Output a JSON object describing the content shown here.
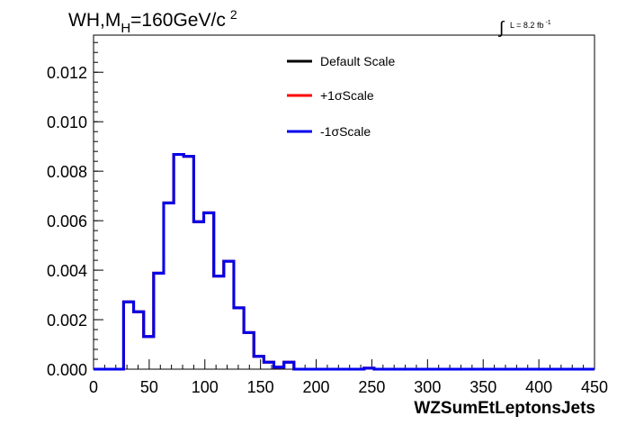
{
  "chart_data": {
    "type": "step",
    "title_parts": {
      "a": "WH,M",
      "sub": "H",
      "b": "=160GeV/c",
      "sup": "2"
    },
    "lumi": {
      "integral": "∫",
      "text": "L = 8.2 fb",
      "sup": "-1"
    },
    "xlabel": "WZSumEtLeptonsJets",
    "ylabel": "",
    "xlim": [
      0,
      450
    ],
    "ylim": [
      0,
      0.0135
    ],
    "xticks": [
      "0",
      "50",
      "100",
      "150",
      "200",
      "250",
      "300",
      "350",
      "400",
      "450"
    ],
    "yticks": [
      "0.000",
      "0.002",
      "0.004",
      "0.006",
      "0.008",
      "0.010",
      "0.012"
    ],
    "bin_width": 9,
    "bin_edges": [
      0,
      9,
      18,
      27,
      36,
      45,
      54,
      63,
      72,
      81,
      90,
      99,
      108,
      117,
      126,
      135,
      144,
      153,
      162,
      171,
      180,
      189,
      198,
      207,
      216,
      225,
      234,
      243,
      252,
      261,
      270,
      279,
      288,
      297,
      306,
      315,
      324,
      333,
      342,
      351,
      360,
      369,
      378,
      387,
      396,
      405,
      414,
      423,
      432,
      441,
      450
    ],
    "series": [
      {
        "name": "Default Scale",
        "color": "#000000",
        "values": [
          0,
          0,
          0,
          0.00272,
          0.00232,
          0.00132,
          0.00388,
          0.00672,
          0.00868,
          0.0086,
          0.00596,
          0.00632,
          0.00376,
          0.00436,
          0.00248,
          0.00148,
          0.00052,
          0.00028,
          8e-05,
          0.00028,
          0,
          0,
          0,
          0,
          0,
          0,
          0,
          4e-05,
          0,
          0,
          0,
          0,
          0,
          0,
          0,
          0,
          0,
          0,
          0,
          0,
          0,
          0,
          0,
          0,
          0,
          0,
          0,
          0,
          0,
          0
        ]
      },
      {
        "name": "+1σScale",
        "color": "#ff0000",
        "values": [
          0,
          0,
          0,
          0.00272,
          0.00232,
          0.00132,
          0.00388,
          0.00672,
          0.00868,
          0.0086,
          0.00596,
          0.00632,
          0.00376,
          0.00436,
          0.00248,
          0.00148,
          0.00052,
          0.00028,
          8e-05,
          0.00028,
          0,
          0,
          0,
          0,
          0,
          0,
          0,
          4e-05,
          0,
          0,
          0,
          0,
          0,
          0,
          0,
          0,
          0,
          0,
          0,
          0,
          0,
          0,
          0,
          0,
          0,
          0,
          0,
          0,
          0,
          0
        ]
      },
      {
        "name": "-1σScale",
        "color": "#0000ee",
        "values": [
          0,
          0,
          0,
          0.00272,
          0.00232,
          0.00132,
          0.00388,
          0.00672,
          0.00868,
          0.0086,
          0.00596,
          0.00632,
          0.00376,
          0.00436,
          0.00248,
          0.00148,
          0.00052,
          0.00028,
          8e-05,
          0.00028,
          0,
          0,
          0,
          0,
          0,
          0,
          0,
          4e-05,
          0,
          0,
          0,
          0,
          0,
          0,
          0,
          0,
          0,
          0,
          0,
          0,
          0,
          0,
          0,
          0,
          0,
          0,
          0,
          0,
          0,
          0
        ]
      }
    ],
    "legend_position": "top-center",
    "grid": false
  }
}
